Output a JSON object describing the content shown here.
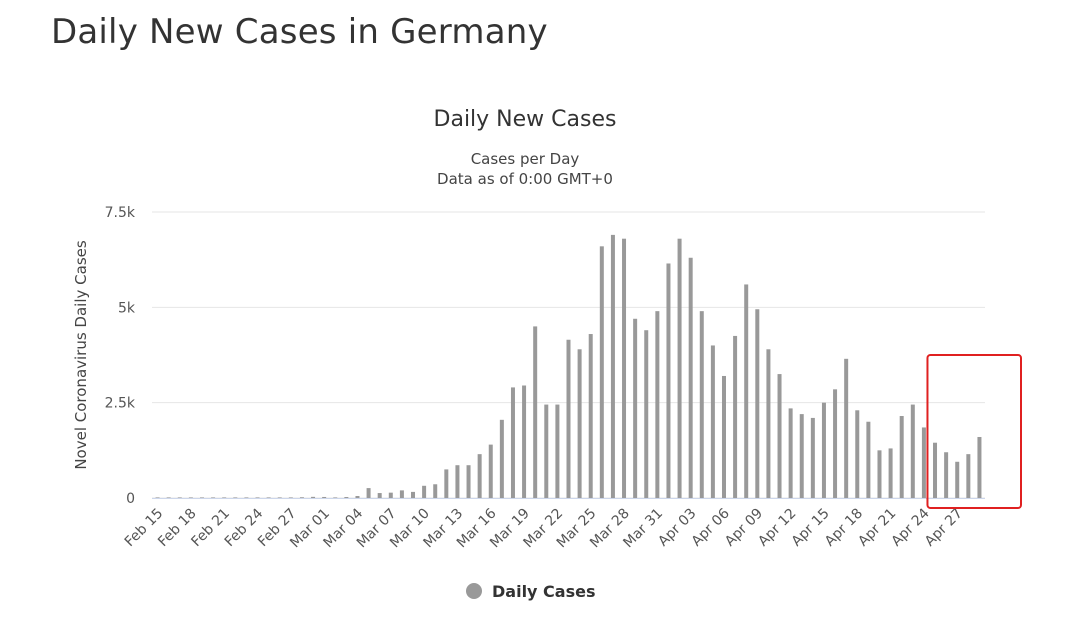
{
  "page": {
    "title": "Daily New Cases in Germany"
  },
  "colors": {
    "bar": "#999999",
    "grid": "#e6e6e6",
    "highlight": "#e02020"
  },
  "chart_data": {
    "type": "bar",
    "title": "Daily New Cases",
    "subtitle_lines": [
      "Cases per Day",
      "Data as of 0:00 GMT+0"
    ],
    "ylabel": "Novel Coronavirus Daily Cases",
    "xlabel": "",
    "ylim": [
      0,
      7500
    ],
    "yticks": [
      {
        "value": 0,
        "label": "0"
      },
      {
        "value": 2500,
        "label": "2.5k"
      },
      {
        "value": 5000,
        "label": "5k"
      },
      {
        "value": 7500,
        "label": "7.5k"
      }
    ],
    "grid": true,
    "legend_position": "bottom-center",
    "x_tick_labels": [
      "Feb 15",
      "Feb 18",
      "Feb 21",
      "Feb 24",
      "Feb 27",
      "Mar 01",
      "Mar 04",
      "Mar 07",
      "Mar 10",
      "Mar 13",
      "Mar 16",
      "Mar 19",
      "Mar 22",
      "Mar 25",
      "Mar 28",
      "Mar 31",
      "Apr 03",
      "Apr 06",
      "Apr 09",
      "Apr 12",
      "Apr 15",
      "Apr 18",
      "Apr 21",
      "Apr 24",
      "Apr 27"
    ],
    "tick_every": 3,
    "categories": [
      "Feb 15",
      "Feb 16",
      "Feb 17",
      "Feb 18",
      "Feb 19",
      "Feb 20",
      "Feb 21",
      "Feb 22",
      "Feb 23",
      "Feb 24",
      "Feb 25",
      "Feb 26",
      "Feb 27",
      "Feb 28",
      "Feb 29",
      "Mar 01",
      "Mar 02",
      "Mar 03",
      "Mar 04",
      "Mar 05",
      "Mar 06",
      "Mar 07",
      "Mar 08",
      "Mar 09",
      "Mar 10",
      "Mar 11",
      "Mar 12",
      "Mar 13",
      "Mar 14",
      "Mar 15",
      "Mar 16",
      "Mar 17",
      "Mar 18",
      "Mar 19",
      "Mar 20",
      "Mar 21",
      "Mar 22",
      "Mar 23",
      "Mar 24",
      "Mar 25",
      "Mar 26",
      "Mar 27",
      "Mar 28",
      "Mar 29",
      "Mar 30",
      "Mar 31",
      "Apr 01",
      "Apr 02",
      "Apr 03",
      "Apr 04",
      "Apr 05",
      "Apr 06",
      "Apr 07",
      "Apr 08",
      "Apr 09",
      "Apr 10",
      "Apr 11",
      "Apr 12",
      "Apr 13",
      "Apr 14",
      "Apr 15",
      "Apr 16",
      "Apr 17",
      "Apr 18",
      "Apr 19",
      "Apr 20",
      "Apr 21",
      "Apr 22",
      "Apr 23",
      "Apr 24",
      "Apr 25",
      "Apr 26",
      "Apr 27",
      "Apr 28",
      "Apr 29"
    ],
    "series": [
      {
        "name": "Daily Cases",
        "values": [
          0,
          0,
          0,
          0,
          0,
          0,
          0,
          0,
          0,
          0,
          2,
          1,
          12,
          20,
          30,
          27,
          10,
          26,
          52,
          260,
          130,
          140,
          200,
          160,
          320,
          360,
          750,
          860,
          860,
          1150,
          1400,
          2050,
          2900,
          2950,
          4500,
          2450,
          2450,
          4150,
          3900,
          4300,
          6600,
          6900,
          6800,
          4700,
          4400,
          4900,
          6150,
          6800,
          6300,
          4900,
          4000,
          3200,
          4250,
          5600,
          4950,
          3900,
          3250,
          2350,
          2200,
          2100,
          2500,
          2850,
          3650,
          2300,
          2000,
          1250,
          1300,
          2150,
          2450,
          1850,
          1450,
          1200,
          950,
          1150,
          1600
        ]
      }
    ],
    "highlight_box": {
      "from": "Apr 25",
      "to": "Apr 29"
    }
  }
}
